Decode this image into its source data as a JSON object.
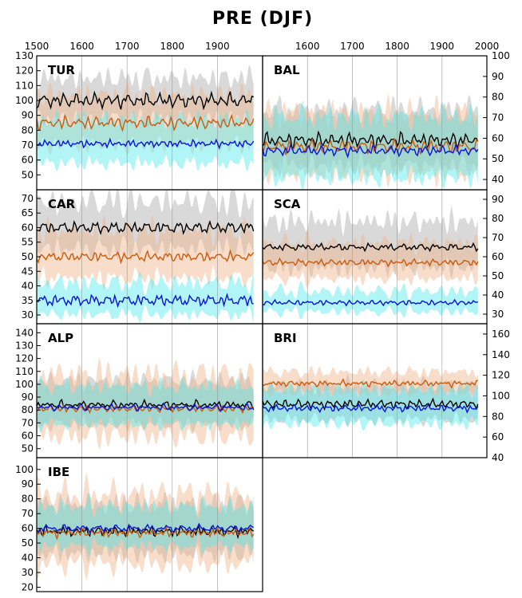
{
  "title": "PRE (DJF)",
  "colors": {
    "black": "#000000",
    "orange": "#cc5a0c",
    "blue": "#0a14d8",
    "band_grey": "#aaaaaa",
    "band_orange": "#f0b58a",
    "band_cyan": "#55e8ee",
    "vgrid": "#999999"
  },
  "chart_data": {
    "type": "line",
    "x_range": [
      1500,
      2000
    ],
    "series_order": [
      "black",
      "orange",
      "blue"
    ],
    "x_ticks_top_left": [
      "1500",
      "1600",
      "1700",
      "1800",
      "1900"
    ],
    "x_ticks_top_right": [
      "1600",
      "1700",
      "1800",
      "1900",
      "2000"
    ],
    "panels": [
      {
        "name": "TUR",
        "axis_side": "left",
        "ylim": [
          40,
          130
        ],
        "yticks": [
          50,
          60,
          70,
          80,
          90,
          100,
          110,
          120,
          130
        ],
        "lines": [
          {
            "color": "black",
            "base": 100,
            "amp": 6,
            "bw": 20
          },
          {
            "color": "orange",
            "base": 85,
            "amp": 5,
            "bw": 25
          },
          {
            "color": "blue",
            "base": 71,
            "amp": 3,
            "bw": 22
          }
        ]
      },
      {
        "name": "BAL",
        "axis_side": "right",
        "ylim": [
          35,
          100
        ],
        "yticks": [
          40,
          50,
          60,
          70,
          80,
          90,
          100
        ],
        "lines": [
          {
            "color": "black",
            "base": 59,
            "amp": 4,
            "bw": 20
          },
          {
            "color": "orange",
            "base": 56,
            "amp": 4,
            "bw": 22
          },
          {
            "color": "blue",
            "base": 54,
            "amp": 3,
            "bw": 22
          }
        ]
      },
      {
        "name": "CAR",
        "axis_side": "left",
        "ylim": [
          27,
          73
        ],
        "yticks": [
          30,
          35,
          40,
          45,
          50,
          55,
          60,
          65,
          70
        ],
        "lines": [
          {
            "color": "black",
            "base": 60,
            "amp": 2,
            "bw": 12
          },
          {
            "color": "orange",
            "base": 50,
            "amp": 2,
            "bw": 12
          },
          {
            "color": "blue",
            "base": 35,
            "amp": 2,
            "bw": 8
          }
        ]
      },
      {
        "name": "SCA",
        "axis_side": "right",
        "ylim": [
          25,
          95
        ],
        "yticks": [
          30,
          40,
          50,
          60,
          70,
          80,
          90
        ],
        "lines": [
          {
            "color": "black",
            "base": 65,
            "amp": 2,
            "bw": 18
          },
          {
            "color": "orange",
            "base": 57,
            "amp": 2,
            "bw": 14
          },
          {
            "color": "blue",
            "base": 36,
            "amp": 1.5,
            "bw": 8
          }
        ]
      },
      {
        "name": "ALP",
        "axis_side": "left",
        "ylim": [
          43,
          147
        ],
        "yticks": [
          50,
          60,
          70,
          80,
          90,
          100,
          110,
          120,
          130,
          140
        ],
        "lines": [
          {
            "color": "black",
            "base": 84,
            "amp": 4,
            "bw": 25
          },
          {
            "color": "orange",
            "base": 81,
            "amp": 3,
            "bw": 35
          },
          {
            "color": "blue",
            "base": 82,
            "amp": 3,
            "bw": 22
          }
        ]
      },
      {
        "name": "BRI",
        "axis_side": "right",
        "ylim": [
          40,
          170
        ],
        "yticks": [
          40,
          60,
          80,
          100,
          120,
          140,
          160
        ],
        "lines": [
          {
            "color": "black",
            "base": 92,
            "amp": 5,
            "bw": 25
          },
          {
            "color": "orange",
            "base": 112,
            "amp": 4,
            "bw": 15
          },
          {
            "color": "blue",
            "base": 88,
            "amp": 4,
            "bw": 25
          }
        ]
      },
      {
        "name": "IBE",
        "axis_side": "left",
        "ylim": [
          17,
          108
        ],
        "yticks": [
          20,
          30,
          40,
          50,
          60,
          70,
          80,
          90,
          100
        ],
        "lines": [
          {
            "color": "black",
            "base": 58,
            "amp": 4,
            "bw": 25
          },
          {
            "color": "orange",
            "base": 57,
            "amp": 4,
            "bw": 35
          },
          {
            "color": "blue",
            "base": 60,
            "amp": 3,
            "bw": 20
          }
        ]
      }
    ]
  }
}
